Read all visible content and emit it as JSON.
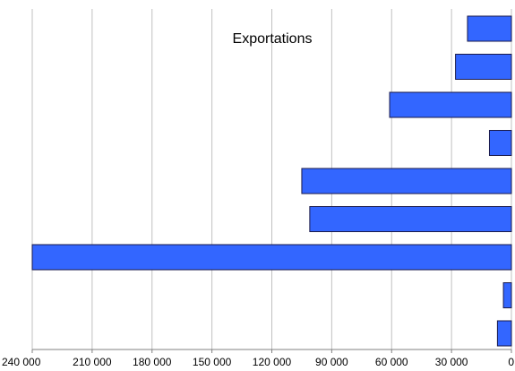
{
  "chart_data": {
    "type": "bar",
    "orientation": "horizontal",
    "x_axis_reversed": true,
    "title": "Exportations",
    "xlabel": "",
    "ylabel": "",
    "xlim": [
      0,
      240000
    ],
    "x_ticks": [
      240000,
      210000,
      180000,
      150000,
      120000,
      90000,
      60000,
      30000,
      0
    ],
    "x_tick_labels": [
      "240 000",
      "210 000",
      "180 000",
      "150 000",
      "120 000",
      "90 000",
      "60 000",
      "30 000",
      "0"
    ],
    "grid": true,
    "bar_color": "#3366ff",
    "values": [
      22000,
      28000,
      61000,
      11000,
      105000,
      101000,
      240000,
      4000,
      7000
    ]
  }
}
